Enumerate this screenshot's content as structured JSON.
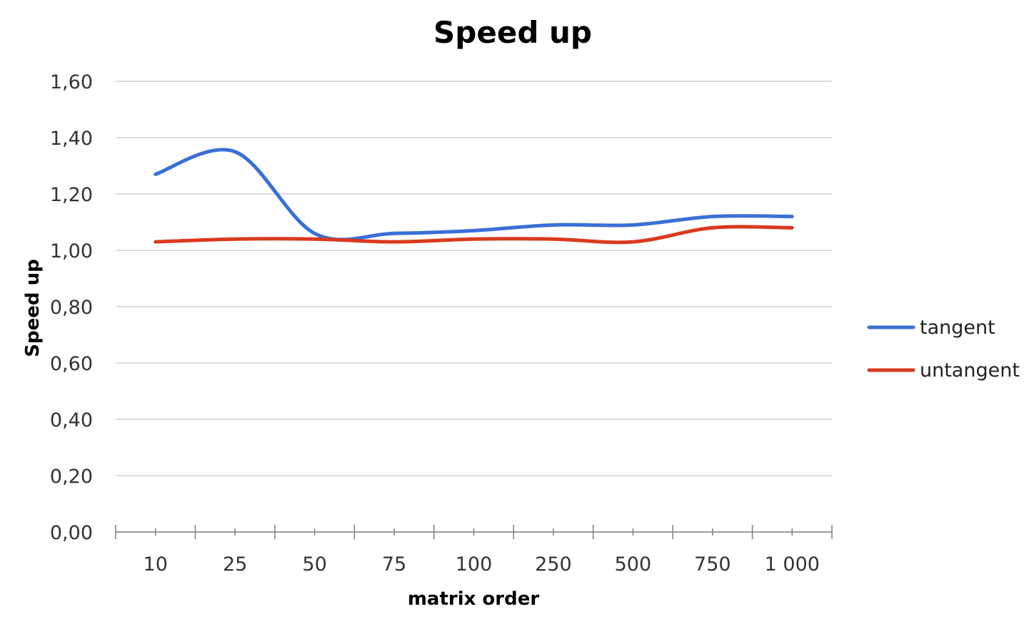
{
  "chart_data": {
    "type": "line",
    "title": "Speed up",
    "xlabel": "matrix order",
    "ylabel": "Speed up",
    "categories": [
      "10",
      "25",
      "50",
      "75",
      "100",
      "250",
      "500",
      "750",
      "1 000"
    ],
    "series": [
      {
        "name": "tangent",
        "color": "#3a6fd6",
        "values": [
          1.27,
          1.35,
          1.06,
          1.06,
          1.07,
          1.09,
          1.09,
          1.12,
          1.12
        ]
      },
      {
        "name": "untangent",
        "color": "#d93a1e",
        "values": [
          1.03,
          1.04,
          1.04,
          1.03,
          1.04,
          1.04,
          1.03,
          1.08,
          1.08
        ]
      }
    ],
    "ylim": [
      0,
      1.6
    ],
    "yticks": [
      "0,00",
      "0,20",
      "0,40",
      "0,60",
      "0,80",
      "1,00",
      "1,20",
      "1,40",
      "1,60"
    ],
    "grid": true,
    "legend": "right",
    "smooth": true
  }
}
